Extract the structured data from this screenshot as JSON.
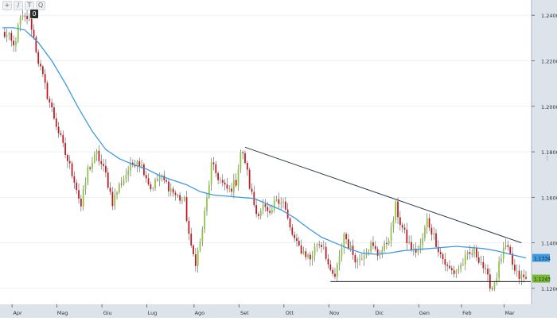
{
  "toolbar": {
    "icons": [
      "crosshair-icon",
      "pencil-icon",
      "text-icon",
      "zoom-icon"
    ],
    "glyphs": [
      "+",
      "/",
      "T",
      "Q"
    ],
    "badge": "0"
  },
  "chart_data": {
    "type": "candlestick",
    "title": "",
    "xlabel": "",
    "ylabel": "",
    "ylim": [
      1.113,
      1.246
    ],
    "y_ticks": [
      "1.2400",
      "1.2200",
      "1.2000",
      "1.1800",
      "1.1600",
      "1.1400",
      "1.1200"
    ],
    "y_tick_values": [
      1.24,
      1.22,
      1.2,
      1.18,
      1.16,
      1.14,
      1.12
    ],
    "x_labels": [
      "Apr",
      "Mag",
      "Giu",
      "Lug",
      "Ago",
      "Set",
      "Ott",
      "Nov",
      "Dic",
      "Gen",
      "Feb",
      "Mar"
    ],
    "x_label_index": [
      5,
      25,
      45,
      65,
      86,
      106,
      126,
      146,
      166,
      186,
      205,
      224
    ],
    "close_path": [
      [
        0,
        1.232
      ],
      [
        3,
        1.23
      ],
      [
        5,
        1.226
      ],
      [
        8,
        1.238
      ],
      [
        11,
        1.239
      ],
      [
        13,
        1.235
      ],
      [
        16,
        1.22
      ],
      [
        20,
        1.205
      ],
      [
        24,
        1.192
      ],
      [
        28,
        1.179
      ],
      [
        32,
        1.168
      ],
      [
        35,
        1.156
      ],
      [
        38,
        1.172
      ],
      [
        42,
        1.179
      ],
      [
        46,
        1.17
      ],
      [
        49,
        1.158
      ],
      [
        52,
        1.165
      ],
      [
        56,
        1.172
      ],
      [
        60,
        1.177
      ],
      [
        63,
        1.172
      ],
      [
        66,
        1.164
      ],
      [
        70,
        1.169
      ],
      [
        73,
        1.166
      ],
      [
        77,
        1.161
      ],
      [
        81,
        1.158
      ],
      [
        84,
        1.137
      ],
      [
        86,
        1.132
      ],
      [
        88,
        1.14
      ],
      [
        91,
        1.159
      ],
      [
        93,
        1.174
      ],
      [
        96,
        1.169
      ],
      [
        99,
        1.164
      ],
      [
        101,
        1.163
      ],
      [
        104,
        1.167
      ],
      [
        106,
        1.18
      ],
      [
        108,
        1.176
      ],
      [
        110,
        1.165
      ],
      [
        113,
        1.153
      ],
      [
        116,
        1.156
      ],
      [
        119,
        1.151
      ],
      [
        122,
        1.16
      ],
      [
        125,
        1.158
      ],
      [
        128,
        1.146
      ],
      [
        131,
        1.139
      ],
      [
        134,
        1.136
      ],
      [
        137,
        1.133
      ],
      [
        140,
        1.14
      ],
      [
        143,
        1.139
      ],
      [
        146,
        1.126
      ],
      [
        148,
        1.125
      ],
      [
        150,
        1.133
      ],
      [
        152,
        1.144
      ],
      [
        155,
        1.137
      ],
      [
        158,
        1.132
      ],
      [
        161,
        1.136
      ],
      [
        164,
        1.139
      ],
      [
        167,
        1.135
      ],
      [
        170,
        1.138
      ],
      [
        173,
        1.145
      ],
      [
        175,
        1.156
      ],
      [
        177,
        1.149
      ],
      [
        180,
        1.141
      ],
      [
        183,
        1.136
      ],
      [
        186,
        1.138
      ],
      [
        189,
        1.15
      ],
      [
        192,
        1.143
      ],
      [
        195,
        1.135
      ],
      [
        198,
        1.129
      ],
      [
        201,
        1.127
      ],
      [
        204,
        1.13
      ],
      [
        207,
        1.134
      ],
      [
        210,
        1.136
      ],
      [
        213,
        1.132
      ],
      [
        216,
        1.124
      ],
      [
        218,
        1.12
      ],
      [
        220,
        1.126
      ],
      [
        222,
        1.134
      ],
      [
        224,
        1.138
      ],
      [
        226,
        1.134
      ],
      [
        228,
        1.127
      ],
      [
        230,
        1.125
      ],
      [
        233,
        1.1243
      ]
    ],
    "moving_average": [
      [
        0,
        1.2345
      ],
      [
        5,
        1.2345
      ],
      [
        10,
        1.2335
      ],
      [
        16,
        1.228
      ],
      [
        22,
        1.22
      ],
      [
        28,
        1.21
      ],
      [
        34,
        1.199
      ],
      [
        40,
        1.189
      ],
      [
        46,
        1.181
      ],
      [
        52,
        1.177
      ],
      [
        58,
        1.1745
      ],
      [
        64,
        1.1725
      ],
      [
        70,
        1.1695
      ],
      [
        76,
        1.1675
      ],
      [
        82,
        1.1655
      ],
      [
        88,
        1.1625
      ],
      [
        94,
        1.161
      ],
      [
        100,
        1.1605
      ],
      [
        106,
        1.16
      ],
      [
        112,
        1.1595
      ],
      [
        118,
        1.157
      ],
      [
        124,
        1.1545
      ],
      [
        130,
        1.151
      ],
      [
        136,
        1.1465
      ],
      [
        142,
        1.1425
      ],
      [
        148,
        1.14
      ],
      [
        154,
        1.1375
      ],
      [
        160,
        1.1355
      ],
      [
        166,
        1.135
      ],
      [
        172,
        1.1355
      ],
      [
        178,
        1.1365
      ],
      [
        184,
        1.137
      ],
      [
        190,
        1.1375
      ],
      [
        196,
        1.138
      ],
      [
        202,
        1.1385
      ],
      [
        208,
        1.138
      ],
      [
        214,
        1.1375
      ],
      [
        220,
        1.1365
      ],
      [
        226,
        1.135
      ],
      [
        233,
        1.1334
      ]
    ],
    "trendline": [
      [
        108,
        1.182
      ],
      [
        231,
        1.14
      ]
    ],
    "support_line": [
      [
        146,
        1.123
      ],
      [
        233,
        1.123
      ]
    ],
    "last_labels": [
      {
        "value": 1.1334,
        "text": "1.1334",
        "color": "#3f9ae0",
        "name": "ma-last-label"
      },
      {
        "value": 1.1243,
        "text": "1.1243",
        "color": "#7ab82e",
        "name": "price-last-label"
      }
    ],
    "x_index_max": 233,
    "colors": {
      "up": "#8cc63f",
      "down": "#c0181e",
      "wick": "#555555",
      "ma": "#3f9ae0",
      "trend": "#2a3a47",
      "axis_bg": "#dde3ea",
      "grid": "#e3e7eb"
    }
  }
}
